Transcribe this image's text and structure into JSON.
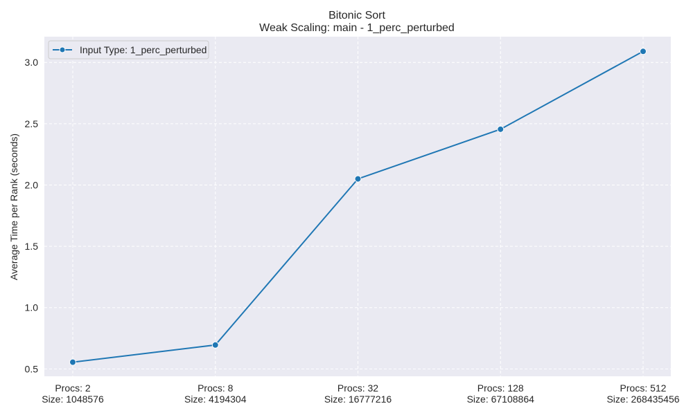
{
  "chart_data": {
    "type": "line",
    "title": "Bitonic Sort",
    "subtitle": "Weak Scaling: main - 1_perc_perturbed",
    "xlabel": "",
    "ylabel": "Average Time per Rank (seconds)",
    "categories": [
      [
        "Procs: 2",
        "Size: 1048576"
      ],
      [
        "Procs: 8",
        "Size: 4194304"
      ],
      [
        "Procs: 32",
        "Size: 16777216"
      ],
      [
        "Procs: 128",
        "Size: 67108864"
      ],
      [
        "Procs: 512",
        "Size: 268435456"
      ]
    ],
    "yticks": [
      "0.5",
      "1.0",
      "1.5",
      "2.0",
      "2.5",
      "3.0"
    ],
    "ylim": [
      0.44,
      3.21
    ],
    "series": [
      {
        "name": "Input Type: 1_perc_perturbed",
        "values": [
          0.555,
          0.695,
          2.05,
          2.455,
          3.09
        ],
        "color": "#1f77b4"
      }
    ],
    "grid": true,
    "legend_position": "top-left",
    "background": "#eaeaf2"
  }
}
